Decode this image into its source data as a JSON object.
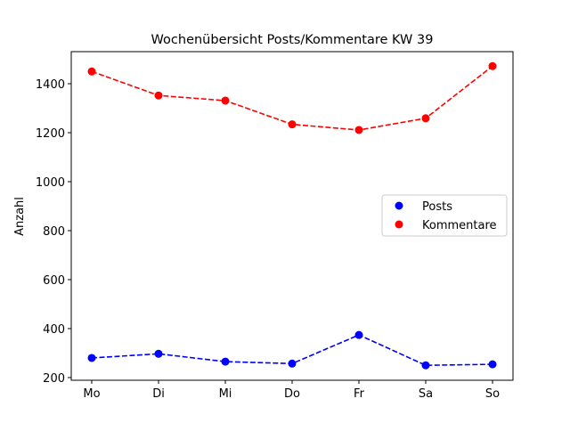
{
  "chart_data": {
    "type": "line",
    "title": "Wochenübersicht Posts/Kommentare KW 39",
    "xlabel": "",
    "ylabel": "Anzahl",
    "categories": [
      "Mo",
      "Di",
      "Mi",
      "Do",
      "Fr",
      "Sa",
      "So"
    ],
    "yticks": [
      200,
      400,
      600,
      800,
      1000,
      1200,
      1400
    ],
    "ylim": [
      189,
      1531
    ],
    "grid": false,
    "legend_position": "center-right",
    "series": [
      {
        "name": "Posts",
        "color": "#0000ff",
        "linestyle": "dashed",
        "marker": "circle",
        "values": [
          280,
          297,
          265,
          257,
          374,
          250,
          254
        ]
      },
      {
        "name": "Kommentare",
        "color": "#ff0000",
        "linestyle": "dashed",
        "marker": "circle",
        "values": [
          1450,
          1352,
          1331,
          1234,
          1211,
          1259,
          1472
        ]
      }
    ]
  }
}
